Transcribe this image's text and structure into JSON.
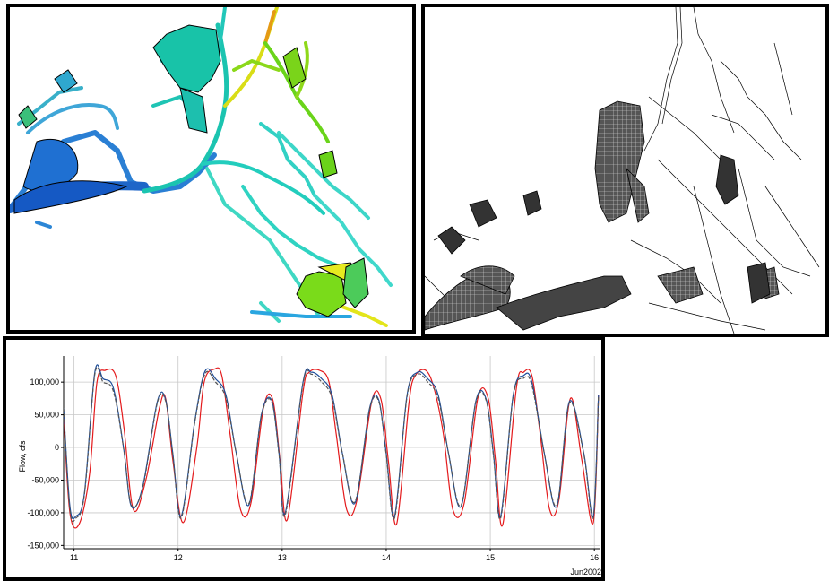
{
  "chart_data": {
    "type": "line",
    "ylabel": "Flow, cfs",
    "xlabel": "",
    "x_unit_label": "Jun2002",
    "x_ticks": [
      "11",
      "12",
      "13",
      "14",
      "15",
      "16"
    ],
    "x_range": [
      10.9,
      16.05
    ],
    "y_ticks": [
      "-150,000",
      "-100,000",
      "-50,000",
      "0",
      "50,000",
      "100,000"
    ],
    "y_tick_values": [
      -150000,
      -100000,
      -50000,
      0,
      50000,
      100000
    ],
    "ylim": [
      -155000,
      140000
    ],
    "grid": true,
    "series": [
      {
        "color": "#e41a1c",
        "style": "solid",
        "x": [
          10.9,
          10.96,
          11.05,
          11.15,
          11.22,
          11.3,
          11.4,
          11.48,
          11.57,
          11.69,
          11.82,
          11.88,
          11.95,
          12.05,
          12.18,
          12.25,
          12.35,
          12.42,
          12.5,
          12.6,
          12.7,
          12.82,
          12.91,
          12.98,
          13.05,
          13.2,
          13.26,
          13.36,
          13.45,
          13.52,
          13.62,
          13.72,
          13.86,
          13.95,
          14.02,
          14.1,
          14.22,
          14.28,
          14.38,
          14.46,
          14.55,
          14.64,
          14.75,
          14.88,
          14.98,
          15.05,
          15.12,
          15.25,
          15.32,
          15.4,
          15.48,
          15.57,
          15.66,
          15.77,
          15.88,
          15.99,
          16.04
        ],
        "y": [
          50000,
          -100000,
          -117000,
          -40000,
          100000,
          118000,
          110000,
          30000,
          -95000,
          -50000,
          60000,
          75000,
          -20000,
          -115000,
          0,
          100000,
          120000,
          110000,
          20000,
          -95000,
          -85000,
          60000,
          73000,
          -20000,
          -110000,
          85000,
          115000,
          118000,
          100000,
          20000,
          -95000,
          -80000,
          70000,
          73000,
          -20000,
          -117000,
          70000,
          110000,
          118000,
          90000,
          20000,
          -95000,
          -85000,
          75000,
          75000,
          -20000,
          -118000,
          90000,
          115000,
          110000,
          20000,
          -95000,
          -80000,
          75000,
          -20000,
          -115000,
          80000
        ]
      },
      {
        "color": "#1f4e99",
        "style": "solid",
        "x": [
          10.9,
          10.96,
          11.02,
          11.1,
          11.2,
          11.28,
          11.38,
          11.48,
          11.55,
          11.66,
          11.8,
          11.88,
          11.95,
          12.03,
          12.16,
          12.26,
          12.36,
          12.46,
          12.56,
          12.68,
          12.8,
          12.9,
          12.97,
          13.03,
          13.2,
          13.28,
          13.38,
          13.48,
          13.58,
          13.7,
          13.84,
          13.93,
          14.0,
          14.08,
          14.2,
          14.3,
          14.4,
          14.5,
          14.6,
          14.72,
          14.86,
          14.96,
          15.03,
          15.1,
          15.22,
          15.32,
          15.4,
          15.52,
          15.64,
          15.76,
          15.9,
          15.99,
          16.04
        ],
        "y": [
          60000,
          -90000,
          -105000,
          -70000,
          115000,
          105000,
          90000,
          -5000,
          -90000,
          -60000,
          70000,
          73000,
          -10000,
          -105000,
          40000,
          117000,
          105000,
          80000,
          -10000,
          -88000,
          50000,
          72000,
          -10000,
          -100000,
          100000,
          115000,
          105000,
          80000,
          -10000,
          -85000,
          60000,
          72000,
          -10000,
          -105000,
          80000,
          115000,
          105000,
          80000,
          -10000,
          -90000,
          70000,
          74000,
          -10000,
          -105000,
          80000,
          110000,
          100000,
          -10000,
          -90000,
          70000,
          -10000,
          -105000,
          80000
        ]
      },
      {
        "color": "#555555",
        "style": "dashed",
        "x": [
          10.9,
          10.96,
          11.02,
          11.1,
          11.2,
          11.28,
          11.38,
          11.48,
          11.55,
          11.66,
          11.8,
          11.88,
          11.95,
          12.03,
          12.16,
          12.26,
          12.36,
          12.46,
          12.56,
          12.68,
          12.8,
          12.9,
          12.97,
          13.03,
          13.2,
          13.28,
          13.38,
          13.48,
          13.58,
          13.7,
          13.84,
          13.93,
          14.0,
          14.08,
          14.2,
          14.3,
          14.4,
          14.5,
          14.6,
          14.72,
          14.86,
          14.96,
          15.03,
          15.1,
          15.22,
          15.32,
          15.4,
          15.52,
          15.64,
          15.76,
          15.9,
          15.99,
          16.04
        ],
        "y": [
          60000,
          -95000,
          -108000,
          -72000,
          112000,
          100000,
          85000,
          -5000,
          -88000,
          -62000,
          68000,
          71000,
          -12000,
          -108000,
          38000,
          113000,
          100000,
          75000,
          -10000,
          -86000,
          48000,
          70000,
          -12000,
          -103000,
          98000,
          112000,
          100000,
          75000,
          -10000,
          -83000,
          58000,
          70000,
          -12000,
          -108000,
          78000,
          112000,
          100000,
          75000,
          -10000,
          -88000,
          68000,
          72000,
          -12000,
          -108000,
          78000,
          106000,
          95000,
          -10000,
          -88000,
          68000,
          -12000,
          -108000,
          78000
        ]
      }
    ]
  }
}
